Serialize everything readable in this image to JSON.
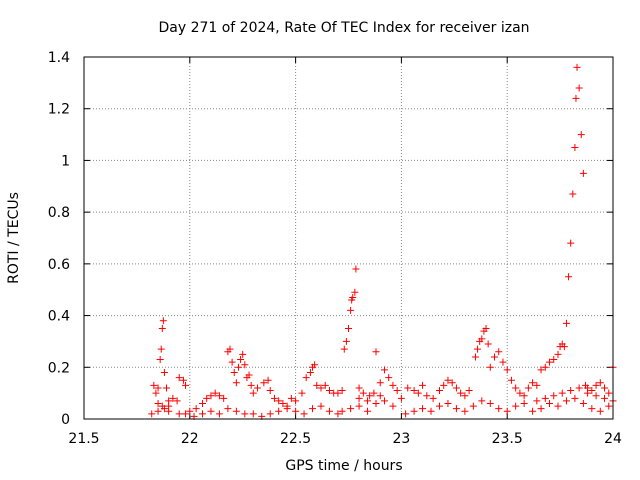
{
  "chart_data": {
    "type": "scatter",
    "title": "Day 271 of 2024, Rate Of TEC Index for receiver izan",
    "xlabel": "GPS time / hours",
    "ylabel": "ROTI / TECUs",
    "xlim": [
      21.5,
      24
    ],
    "ylim": [
      0,
      1.4
    ],
    "xticks": [
      21.5,
      22,
      22.5,
      23,
      23.5,
      24
    ],
    "xtick_labels": [
      "21.5",
      "22",
      "22.5",
      "23",
      "23.5",
      "24"
    ],
    "yticks": [
      0,
      0.2,
      0.4,
      0.6,
      0.8,
      1.0,
      1.2,
      1.4
    ],
    "ytick_labels": [
      "0",
      "0.2",
      "0.4",
      "0.6",
      "0.8",
      "1",
      "1.2",
      "1.4"
    ],
    "grid": true,
    "marker": "+",
    "color": "#ff0000",
    "series": [
      {
        "name": "izan",
        "points": [
          [
            21.83,
            0.13
          ],
          [
            21.84,
            0.1
          ],
          [
            21.85,
            0.12
          ],
          [
            21.86,
            0.23
          ],
          [
            21.865,
            0.27
          ],
          [
            21.87,
            0.35
          ],
          [
            21.875,
            0.38
          ],
          [
            21.88,
            0.18
          ],
          [
            21.89,
            0.12
          ],
          [
            21.9,
            0.07
          ],
          [
            21.92,
            0.08
          ],
          [
            21.94,
            0.07
          ],
          [
            21.95,
            0.16
          ],
          [
            21.97,
            0.15
          ],
          [
            21.98,
            0.13
          ],
          [
            21.82,
            0.02
          ],
          [
            21.85,
            0.03
          ],
          [
            21.88,
            0.04
          ],
          [
            21.9,
            0.03
          ],
          [
            21.95,
            0.02
          ],
          [
            21.98,
            0.02
          ],
          [
            21.85,
            0.06
          ],
          [
            21.87,
            0.05
          ],
          [
            21.9,
            0.05
          ],
          [
            22.0,
            0.03
          ],
          [
            22.03,
            0.04
          ],
          [
            22.06,
            0.06
          ],
          [
            22.08,
            0.08
          ],
          [
            22.1,
            0.09
          ],
          [
            22.12,
            0.1
          ],
          [
            22.14,
            0.09
          ],
          [
            22.16,
            0.08
          ],
          [
            22.18,
            0.26
          ],
          [
            22.19,
            0.27
          ],
          [
            22.2,
            0.22
          ],
          [
            22.21,
            0.18
          ],
          [
            22.22,
            0.14
          ],
          [
            22.23,
            0.2
          ],
          [
            22.24,
            0.23
          ],
          [
            22.25,
            0.25
          ],
          [
            22.26,
            0.21
          ],
          [
            22.27,
            0.16
          ],
          [
            22.28,
            0.17
          ],
          [
            22.29,
            0.13
          ],
          [
            22.3,
            0.1
          ],
          [
            22.32,
            0.12
          ],
          [
            22.35,
            0.14
          ],
          [
            22.37,
            0.15
          ],
          [
            22.38,
            0.11
          ],
          [
            22.4,
            0.08
          ],
          [
            22.42,
            0.07
          ],
          [
            22.44,
            0.06
          ],
          [
            22.46,
            0.05
          ],
          [
            22.48,
            0.08
          ],
          [
            22.5,
            0.07
          ],
          [
            22.53,
            0.1
          ],
          [
            22.55,
            0.16
          ],
          [
            22.57,
            0.18
          ],
          [
            22.58,
            0.2
          ],
          [
            22.59,
            0.21
          ],
          [
            22.6,
            0.13
          ],
          [
            22.62,
            0.12
          ],
          [
            22.64,
            0.13
          ],
          [
            22.66,
            0.11
          ],
          [
            22.68,
            0.1
          ],
          [
            22.02,
            0.01
          ],
          [
            22.06,
            0.02
          ],
          [
            22.1,
            0.03
          ],
          [
            22.14,
            0.02
          ],
          [
            22.18,
            0.04
          ],
          [
            22.22,
            0.03
          ],
          [
            22.26,
            0.02
          ],
          [
            22.3,
            0.02
          ],
          [
            22.34,
            0.01
          ],
          [
            22.38,
            0.02
          ],
          [
            22.42,
            0.03
          ],
          [
            22.46,
            0.04
          ],
          [
            22.5,
            0.03
          ],
          [
            22.54,
            0.02
          ],
          [
            22.58,
            0.04
          ],
          [
            22.62,
            0.05
          ],
          [
            22.66,
            0.03
          ],
          [
            22.7,
            0.02
          ],
          [
            22.7,
            0.1
          ],
          [
            22.72,
            0.11
          ],
          [
            22.73,
            0.27
          ],
          [
            22.74,
            0.3
          ],
          [
            22.75,
            0.35
          ],
          [
            22.76,
            0.42
          ],
          [
            22.765,
            0.46
          ],
          [
            22.77,
            0.47
          ],
          [
            22.78,
            0.49
          ],
          [
            22.785,
            0.58
          ],
          [
            22.8,
            0.12
          ],
          [
            22.82,
            0.1
          ],
          [
            22.85,
            0.09
          ],
          [
            22.87,
            0.1
          ],
          [
            22.88,
            0.26
          ],
          [
            22.9,
            0.14
          ],
          [
            22.92,
            0.19
          ],
          [
            22.94,
            0.16
          ],
          [
            22.96,
            0.13
          ],
          [
            22.98,
            0.11
          ],
          [
            22.72,
            0.03
          ],
          [
            22.76,
            0.04
          ],
          [
            22.8,
            0.05
          ],
          [
            22.84,
            0.03
          ],
          [
            22.88,
            0.06
          ],
          [
            22.92,
            0.07
          ],
          [
            22.96,
            0.05
          ],
          [
            22.8,
            0.08
          ],
          [
            22.84,
            0.07
          ],
          [
            22.9,
            0.09
          ],
          [
            23.0,
            0.08
          ],
          [
            23.03,
            0.12
          ],
          [
            23.06,
            0.11
          ],
          [
            23.08,
            0.1
          ],
          [
            23.1,
            0.13
          ],
          [
            23.12,
            0.09
          ],
          [
            23.15,
            0.08
          ],
          [
            23.18,
            0.11
          ],
          [
            23.2,
            0.13
          ],
          [
            23.22,
            0.15
          ],
          [
            23.24,
            0.14
          ],
          [
            23.26,
            0.12
          ],
          [
            23.28,
            0.1
          ],
          [
            23.3,
            0.09
          ],
          [
            23.32,
            0.11
          ],
          [
            23.35,
            0.24
          ],
          [
            23.36,
            0.27
          ],
          [
            23.37,
            0.3
          ],
          [
            23.38,
            0.31
          ],
          [
            23.39,
            0.34
          ],
          [
            23.4,
            0.35
          ],
          [
            23.41,
            0.29
          ],
          [
            23.42,
            0.2
          ],
          [
            23.44,
            0.24
          ],
          [
            23.46,
            0.26
          ],
          [
            23.48,
            0.22
          ],
          [
            23.5,
            0.19
          ],
          [
            23.52,
            0.15
          ],
          [
            23.54,
            0.12
          ],
          [
            23.56,
            0.1
          ],
          [
            23.58,
            0.09
          ],
          [
            23.02,
            0.02
          ],
          [
            23.06,
            0.03
          ],
          [
            23.1,
            0.04
          ],
          [
            23.14,
            0.03
          ],
          [
            23.18,
            0.05
          ],
          [
            23.22,
            0.06
          ],
          [
            23.26,
            0.04
          ],
          [
            23.3,
            0.03
          ],
          [
            23.34,
            0.05
          ],
          [
            23.38,
            0.07
          ],
          [
            23.42,
            0.06
          ],
          [
            23.46,
            0.04
          ],
          [
            23.5,
            0.03
          ],
          [
            23.54,
            0.05
          ],
          [
            23.58,
            0.06
          ],
          [
            23.6,
            0.12
          ],
          [
            23.62,
            0.14
          ],
          [
            23.64,
            0.13
          ],
          [
            23.66,
            0.19
          ],
          [
            23.68,
            0.2
          ],
          [
            23.7,
            0.22
          ],
          [
            23.72,
            0.23
          ],
          [
            23.74,
            0.25
          ],
          [
            23.75,
            0.28
          ],
          [
            23.76,
            0.29
          ],
          [
            23.77,
            0.28
          ],
          [
            23.78,
            0.37
          ],
          [
            23.79,
            0.55
          ],
          [
            23.8,
            0.68
          ],
          [
            23.81,
            0.87
          ],
          [
            23.82,
            1.05
          ],
          [
            23.825,
            1.24
          ],
          [
            23.83,
            1.36
          ],
          [
            23.84,
            1.28
          ],
          [
            23.85,
            1.1
          ],
          [
            23.86,
            0.95
          ],
          [
            23.87,
            0.13
          ],
          [
            23.88,
            0.12
          ],
          [
            23.9,
            0.11
          ],
          [
            23.92,
            0.13
          ],
          [
            23.94,
            0.14
          ],
          [
            23.96,
            0.12
          ],
          [
            23.98,
            0.1
          ],
          [
            24.0,
            0.2
          ],
          [
            23.62,
            0.03
          ],
          [
            23.66,
            0.04
          ],
          [
            23.7,
            0.06
          ],
          [
            23.74,
            0.05
          ],
          [
            23.78,
            0.07
          ],
          [
            23.82,
            0.08
          ],
          [
            23.86,
            0.06
          ],
          [
            23.9,
            0.04
          ],
          [
            23.94,
            0.03
          ],
          [
            23.98,
            0.05
          ],
          [
            23.64,
            0.07
          ],
          [
            23.68,
            0.08
          ],
          [
            23.72,
            0.09
          ],
          [
            23.76,
            0.1
          ],
          [
            23.8,
            0.11
          ],
          [
            23.84,
            0.12
          ],
          [
            23.88,
            0.1
          ],
          [
            23.92,
            0.09
          ],
          [
            23.96,
            0.08
          ],
          [
            24.0,
            0.07
          ]
        ]
      }
    ]
  }
}
